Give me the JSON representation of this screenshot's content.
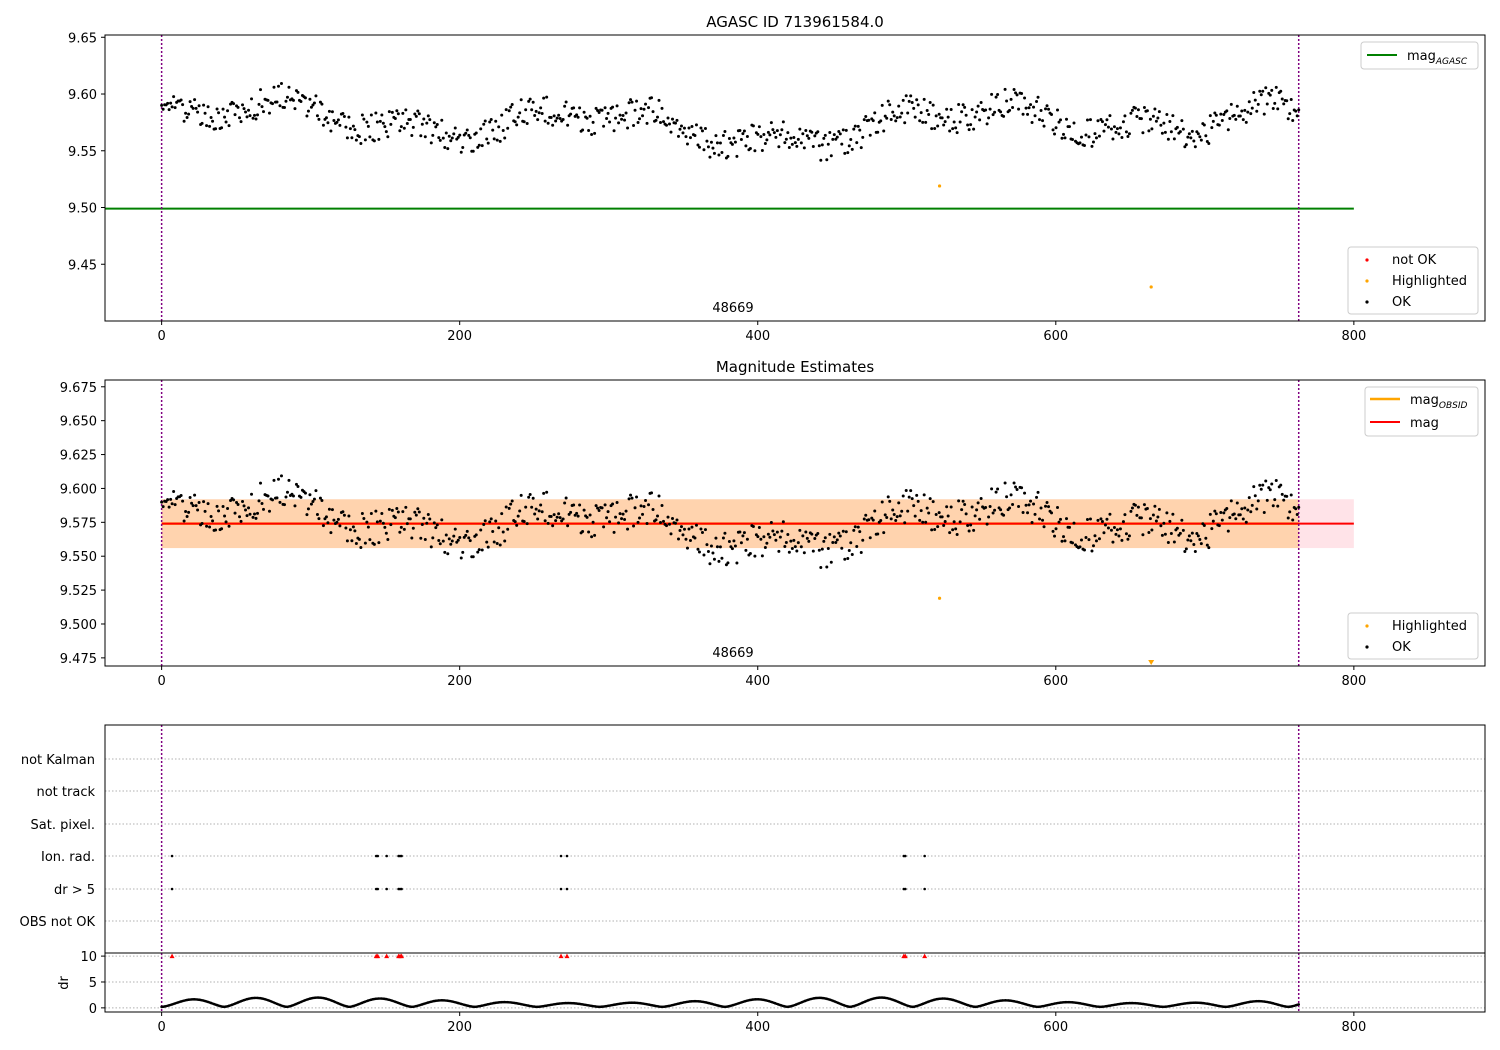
{
  "chart_data": [
    {
      "type": "scatter",
      "title": "AGASC ID 713961584.0",
      "xlim": [
        -38,
        888
      ],
      "ylim": [
        9.4,
        9.652
      ],
      "x_ticks": [
        "0",
        "200",
        "400",
        "600",
        "800"
      ],
      "y_ticks": [
        "9.45",
        "9.50",
        "9.55",
        "9.60",
        "9.65"
      ],
      "annotation": "48669",
      "annotation_x": 380,
      "vlines": [
        0,
        763
      ],
      "hline": {
        "name": "mag_AGASC",
        "y": 9.499,
        "x": [
          -38,
          800
        ],
        "color": "#008000"
      },
      "legend_lines": [
        {
          "label": "mag",
          "sub": "AGASC",
          "color": "#008000"
        }
      ],
      "legend_points": [
        {
          "label": "not OK",
          "color": "#ff0000"
        },
        {
          "label": "Highlighted",
          "color": "#ffa500"
        },
        {
          "label": "OK",
          "color": "#000000"
        }
      ],
      "highlighted": [
        {
          "x": 522,
          "y": 9.519
        },
        {
          "x": 664,
          "y": 9.43
        }
      ],
      "ok_series": {
        "x_start": 0,
        "x_end": 763,
        "count": 760,
        "approx_mean": 9.574,
        "approx_spread": 0.018
      }
    },
    {
      "type": "scatter",
      "title": "Magnitude Estimates",
      "xlim": [
        -38,
        888
      ],
      "ylim": [
        9.469,
        9.68
      ],
      "x_ticks": [
        "0",
        "200",
        "400",
        "600",
        "800"
      ],
      "y_ticks": [
        "9.475",
        "9.500",
        "9.525",
        "9.550",
        "9.575",
        "9.600",
        "9.625",
        "9.650",
        "9.675"
      ],
      "annotation": "48669",
      "annotation_x": 380,
      "vlines": [
        0,
        763
      ],
      "mag_line": {
        "y": 9.574,
        "band": [
          9.556,
          9.592
        ],
        "x": [
          0,
          800
        ],
        "color": "#ff0000"
      },
      "mag_obsid": {
        "y": 9.574,
        "band": [
          9.556,
          9.592
        ],
        "x": [
          0,
          763
        ],
        "color": "#ffa500"
      },
      "legend_lines": [
        {
          "label": "mag",
          "sub": "OBSID",
          "color": "#ffa500"
        },
        {
          "label": "mag",
          "sub": "",
          "color": "#ff0000"
        }
      ],
      "legend_points": [
        {
          "label": "Highlighted",
          "color": "#ffa500"
        },
        {
          "label": "OK",
          "color": "#000000"
        }
      ],
      "highlighted": [
        {
          "x": 522,
          "y": 9.519
        }
      ],
      "below_axis_marker": {
        "x": 664,
        "color": "#ffa500"
      }
    },
    {
      "type": "scatter",
      "xlim": [
        -38,
        888
      ],
      "flag_labels": [
        "not Kalman",
        "not track",
        "Sat. pixel.",
        "Ion. rad.",
        "dr > 5",
        "OBS not OK"
      ],
      "flag_points": {
        "Ion. rad.": [
          7,
          144,
          145,
          151,
          159,
          160,
          161,
          268,
          272,
          498,
          499,
          512
        ],
        "dr > 5": [
          7,
          144,
          145,
          151,
          159,
          160,
          161,
          268,
          272,
          498,
          499,
          512
        ]
      },
      "vlines": [
        0,
        763
      ]
    },
    {
      "type": "scatter",
      "ylabel": "dr",
      "xlim": [
        -38,
        888
      ],
      "ylim": [
        -0.8,
        10.6
      ],
      "x_ticks": [
        "0",
        "200",
        "400",
        "600",
        "800"
      ],
      "y_ticks": [
        "0",
        "5",
        "10"
      ],
      "dr_high_points_x": [
        7,
        144,
        145,
        151,
        159,
        160,
        161,
        268,
        272,
        498,
        499,
        512
      ],
      "dr_high_value": 10,
      "vlines": [
        0,
        763
      ]
    }
  ]
}
